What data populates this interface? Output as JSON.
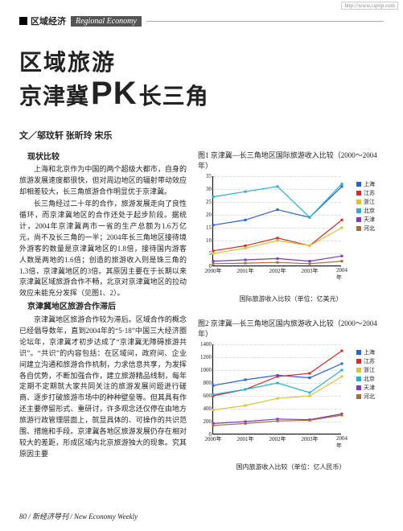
{
  "top_url": "http://www.cqvip.com",
  "header": {
    "section_cn": "区域经济",
    "section_en": "Regional Economy"
  },
  "title": {
    "line1": "区域旅游",
    "line2_a": "京津冀",
    "pk": "PK",
    "line2_b": "长三角"
  },
  "authors_prefix": "文／",
  "authors": "邬玟轩 张昕玲 宋乐",
  "section1_heading": "现状比较",
  "para1": "上海和北京作为中国的两个超级大都市，自身的旅游发展速度都很快，但对周边地区的辐射带动效应却相差较大，长三角旅游合作明显优于京津冀。",
  "para2": "长三角经过二十年的合作，旅游发展走向了良性循环，而京津冀地区的合作还处于起步阶段。据统计，2004年京津冀两市一省的生产总额为1.6万亿元，尚不及长三角的一半；2004年长三角地区接待境外游客的数量是京津冀地区的1.8倍，接待国内游客人数是两地的1.6倍；创造的旅游收入则是珠三角的1.3倍，京津冀地区的3倍。其原因主要在于长期以来京津冀区域旅游合作不畅，北京对京津冀地区的拉动效应未能充分发挥（见图1、2）。",
  "section2_heading": "京津冀地区旅游合作滞后",
  "para3": "京津冀地区旅游合作较为滞后。区域合作的概念已经倡导数年，直到2004年的“5·18”中国三大经济圈论坛年，京津冀才初步达成了“京津冀无障碍旅游共识”。“共识”的内容包括：在区域间，政府间、企业间建立沟通和旅游合作机制，力求信息共享，为发挥各自优势，不断加强合作，建立旅游精品线制，每年定期不定期就大家共同关注的旅游发展问题进行磋商、逐步打破旅游市场中的种种壁垒等。但其具有作还主要停留形式、重研讨，许多观念还仅停在由地方旅游行政管理层面上，就显具体的、可操作的共识范围、措施和手段。京津冀各地区旅游发展仍存在相对较大的差距，形成区域内北京旅游独大的现象。究其原因主要",
  "chart1": {
    "title": "图1 京津冀—长三角地区国际旅游收入比较（2000～2004年）",
    "type": "line",
    "xlabel_years": [
      "2000年",
      "2001年",
      "2002年",
      "2003年",
      "2004年"
    ],
    "yticks": [
      0,
      5,
      10,
      15,
      20,
      25,
      30,
      35
    ],
    "ylim": [
      0,
      35
    ],
    "axis_label": "国际旅游收入比较（单位：亿美元）",
    "series": [
      {
        "name": "上海",
        "color": "#2b5fd2",
        "values": [
          16,
          18,
          22,
          19,
          31
        ]
      },
      {
        "name": "江苏",
        "color": "#d22b2b",
        "values": [
          6,
          8,
          11,
          8,
          18
        ]
      },
      {
        "name": "浙江",
        "color": "#d9c33a",
        "values": [
          5,
          7,
          10,
          8,
          15
        ]
      },
      {
        "name": "北京",
        "color": "#26b0d0",
        "values": [
          27,
          29,
          31,
          19,
          32
        ]
      },
      {
        "name": "天津",
        "color": "#7d3ac1",
        "values": [
          2,
          2.5,
          3,
          2,
          4
        ]
      },
      {
        "name": "河北",
        "color": "#a86b3a",
        "values": [
          1,
          1.2,
          1.5,
          1,
          2
        ]
      }
    ],
    "background_color": "#ffffff",
    "grid_color": "#dddddd",
    "marker_size": 3,
    "line_width": 1.2
  },
  "chart2": {
    "title": "图2 京津冀—长三角地区国内旅游收入比较（2000～2004年）",
    "type": "line",
    "xlabel_years": [
      "2000年",
      "2001年",
      "2002年",
      "2003年",
      "2004年"
    ],
    "yticks": [
      0,
      200,
      400,
      600,
      800,
      1000,
      1200,
      1400
    ],
    "ylim": [
      0,
      1400
    ],
    "axis_label": "国内旅游收入比较（单位：亿人民币）",
    "series": [
      {
        "name": "上海",
        "color": "#2b5fd2",
        "values": [
          760,
          850,
          920,
          880,
          1100
        ]
      },
      {
        "name": "江苏",
        "color": "#d22b2b",
        "values": [
          600,
          700,
          900,
          950,
          1300
        ]
      },
      {
        "name": "浙江",
        "color": "#d9c33a",
        "values": [
          380,
          450,
          560,
          600,
          900
        ]
      },
      {
        "name": "北京",
        "color": "#26b0d0",
        "values": [
          620,
          700,
          800,
          650,
          1000
        ]
      },
      {
        "name": "天津",
        "color": "#7d3ac1",
        "values": [
          170,
          200,
          240,
          230,
          320
        ]
      },
      {
        "name": "河北",
        "color": "#a86b3a",
        "values": [
          140,
          170,
          210,
          220,
          300
        ]
      }
    ],
    "background_color": "#ffffff",
    "grid_color": "#dddddd",
    "marker_size": 3,
    "line_width": 1.2
  },
  "footer": {
    "page_num": "80",
    "sep": " / ",
    "journal_cn": "新经济导刊",
    "journal_en": " / New Economy Weekly"
  }
}
